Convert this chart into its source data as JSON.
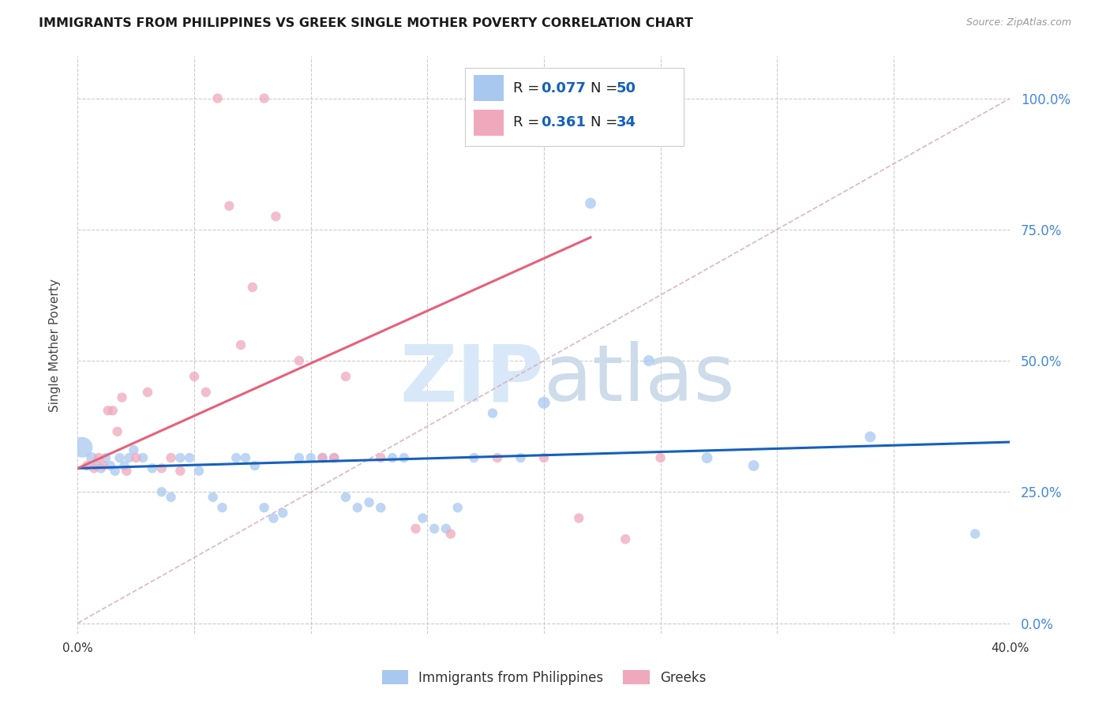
{
  "title": "IMMIGRANTS FROM PHILIPPINES VS GREEK SINGLE MOTHER POVERTY CORRELATION CHART",
  "source": "Source: ZipAtlas.com",
  "ylabel": "Single Mother Poverty",
  "ytick_labels": [
    "0.0%",
    "25.0%",
    "50.0%",
    "75.0%",
    "100.0%"
  ],
  "ytick_values": [
    0.0,
    0.25,
    0.5,
    0.75,
    1.0
  ],
  "legend_label_blue": "Immigrants from Philippines",
  "legend_label_pink": "Greeks",
  "blue_color": "#A8C8F0",
  "pink_color": "#F0A8BC",
  "blue_line_color": "#1560BD",
  "pink_line_color": "#E8607A",
  "ref_line_color": "#D8B0B8",
  "blue_r": 0.077,
  "blue_n": 50,
  "pink_r": 0.361,
  "pink_n": 34,
  "blue_points": [
    [
      0.002,
      0.335,
      350
    ],
    [
      0.006,
      0.315,
      100
    ],
    [
      0.008,
      0.3,
      80
    ],
    [
      0.01,
      0.295,
      80
    ],
    [
      0.012,
      0.315,
      80
    ],
    [
      0.014,
      0.3,
      80
    ],
    [
      0.016,
      0.29,
      80
    ],
    [
      0.018,
      0.315,
      80
    ],
    [
      0.02,
      0.3,
      80
    ],
    [
      0.022,
      0.315,
      80
    ],
    [
      0.024,
      0.33,
      80
    ],
    [
      0.028,
      0.315,
      80
    ],
    [
      0.032,
      0.295,
      80
    ],
    [
      0.036,
      0.25,
      80
    ],
    [
      0.04,
      0.24,
      80
    ],
    [
      0.044,
      0.315,
      80
    ],
    [
      0.048,
      0.315,
      80
    ],
    [
      0.052,
      0.29,
      80
    ],
    [
      0.058,
      0.24,
      80
    ],
    [
      0.062,
      0.22,
      80
    ],
    [
      0.068,
      0.315,
      80
    ],
    [
      0.072,
      0.315,
      80
    ],
    [
      0.076,
      0.3,
      80
    ],
    [
      0.08,
      0.22,
      80
    ],
    [
      0.084,
      0.2,
      80
    ],
    [
      0.088,
      0.21,
      80
    ],
    [
      0.095,
      0.315,
      80
    ],
    [
      0.1,
      0.315,
      80
    ],
    [
      0.105,
      0.315,
      80
    ],
    [
      0.11,
      0.315,
      80
    ],
    [
      0.115,
      0.24,
      80
    ],
    [
      0.12,
      0.22,
      80
    ],
    [
      0.125,
      0.23,
      80
    ],
    [
      0.13,
      0.22,
      80
    ],
    [
      0.135,
      0.315,
      80
    ],
    [
      0.14,
      0.315,
      80
    ],
    [
      0.148,
      0.2,
      80
    ],
    [
      0.153,
      0.18,
      80
    ],
    [
      0.158,
      0.18,
      80
    ],
    [
      0.163,
      0.22,
      80
    ],
    [
      0.17,
      0.315,
      80
    ],
    [
      0.178,
      0.4,
      80
    ],
    [
      0.19,
      0.315,
      80
    ],
    [
      0.2,
      0.42,
      120
    ],
    [
      0.22,
      0.8,
      100
    ],
    [
      0.245,
      0.5,
      100
    ],
    [
      0.27,
      0.315,
      100
    ],
    [
      0.29,
      0.3,
      100
    ],
    [
      0.34,
      0.355,
      100
    ],
    [
      0.385,
      0.17,
      80
    ]
  ],
  "pink_points": [
    [
      0.004,
      0.3,
      80
    ],
    [
      0.007,
      0.295,
      80
    ],
    [
      0.009,
      0.315,
      80
    ],
    [
      0.011,
      0.3,
      80
    ],
    [
      0.013,
      0.405,
      80
    ],
    [
      0.015,
      0.405,
      80
    ],
    [
      0.017,
      0.365,
      80
    ],
    [
      0.019,
      0.43,
      80
    ],
    [
      0.021,
      0.29,
      80
    ],
    [
      0.025,
      0.315,
      80
    ],
    [
      0.03,
      0.44,
      80
    ],
    [
      0.036,
      0.295,
      80
    ],
    [
      0.04,
      0.315,
      80
    ],
    [
      0.044,
      0.29,
      80
    ],
    [
      0.05,
      0.47,
      80
    ],
    [
      0.055,
      0.44,
      80
    ],
    [
      0.06,
      1.0,
      80
    ],
    [
      0.065,
      0.795,
      80
    ],
    [
      0.07,
      0.53,
      80
    ],
    [
      0.075,
      0.64,
      80
    ],
    [
      0.08,
      1.0,
      80
    ],
    [
      0.085,
      0.775,
      80
    ],
    [
      0.095,
      0.5,
      80
    ],
    [
      0.105,
      0.315,
      80
    ],
    [
      0.11,
      0.315,
      80
    ],
    [
      0.115,
      0.47,
      80
    ],
    [
      0.13,
      0.315,
      80
    ],
    [
      0.145,
      0.18,
      80
    ],
    [
      0.16,
      0.17,
      80
    ],
    [
      0.18,
      0.315,
      80
    ],
    [
      0.2,
      0.315,
      80
    ],
    [
      0.215,
      0.2,
      80
    ],
    [
      0.235,
      0.16,
      80
    ],
    [
      0.25,
      0.315,
      80
    ]
  ],
  "xlim": [
    0.0,
    0.4
  ],
  "ylim": [
    -0.02,
    1.08
  ],
  "background_color": "#ffffff",
  "grid_color": "#CCCCCC",
  "title_fontsize": 11.5,
  "watermark_color": "#D8E8F8"
}
